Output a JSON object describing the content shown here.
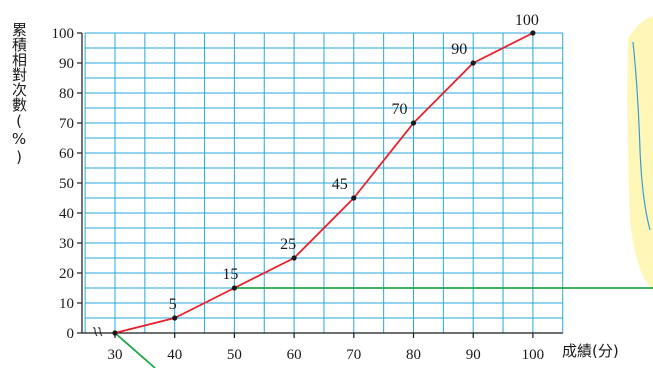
{
  "chart_data": {
    "type": "line",
    "title": "",
    "ylabel": "累積相對次數(%)",
    "xlabel": "成績(分)",
    "x": [
      30,
      40,
      50,
      60,
      70,
      80,
      90,
      100
    ],
    "x_tick_labels": [
      "30",
      "40",
      "50",
      "60",
      "70",
      "80",
      "90",
      "100"
    ],
    "y_ticks": [
      0,
      10,
      20,
      30,
      40,
      50,
      60,
      70,
      80,
      90,
      100
    ],
    "y_tick_labels": [
      "0",
      "10",
      "20",
      "30",
      "40",
      "50",
      "60",
      "70",
      "80",
      "90",
      "100"
    ],
    "xlim": [
      30,
      100
    ],
    "ylim": [
      0,
      100
    ],
    "grid": true,
    "series": [
      {
        "values": [
          0,
          5,
          15,
          25,
          45,
          70,
          90,
          100
        ],
        "data_labels": [
          "",
          "5",
          "15",
          "25",
          "45",
          "70",
          "90",
          "100"
        ]
      }
    ],
    "colors": {
      "line": "#e8202a",
      "grid": "#2aa7dc",
      "axis": "#1a1a1a",
      "highlight": "#22a84a",
      "panel": "#fff7b8"
    }
  }
}
